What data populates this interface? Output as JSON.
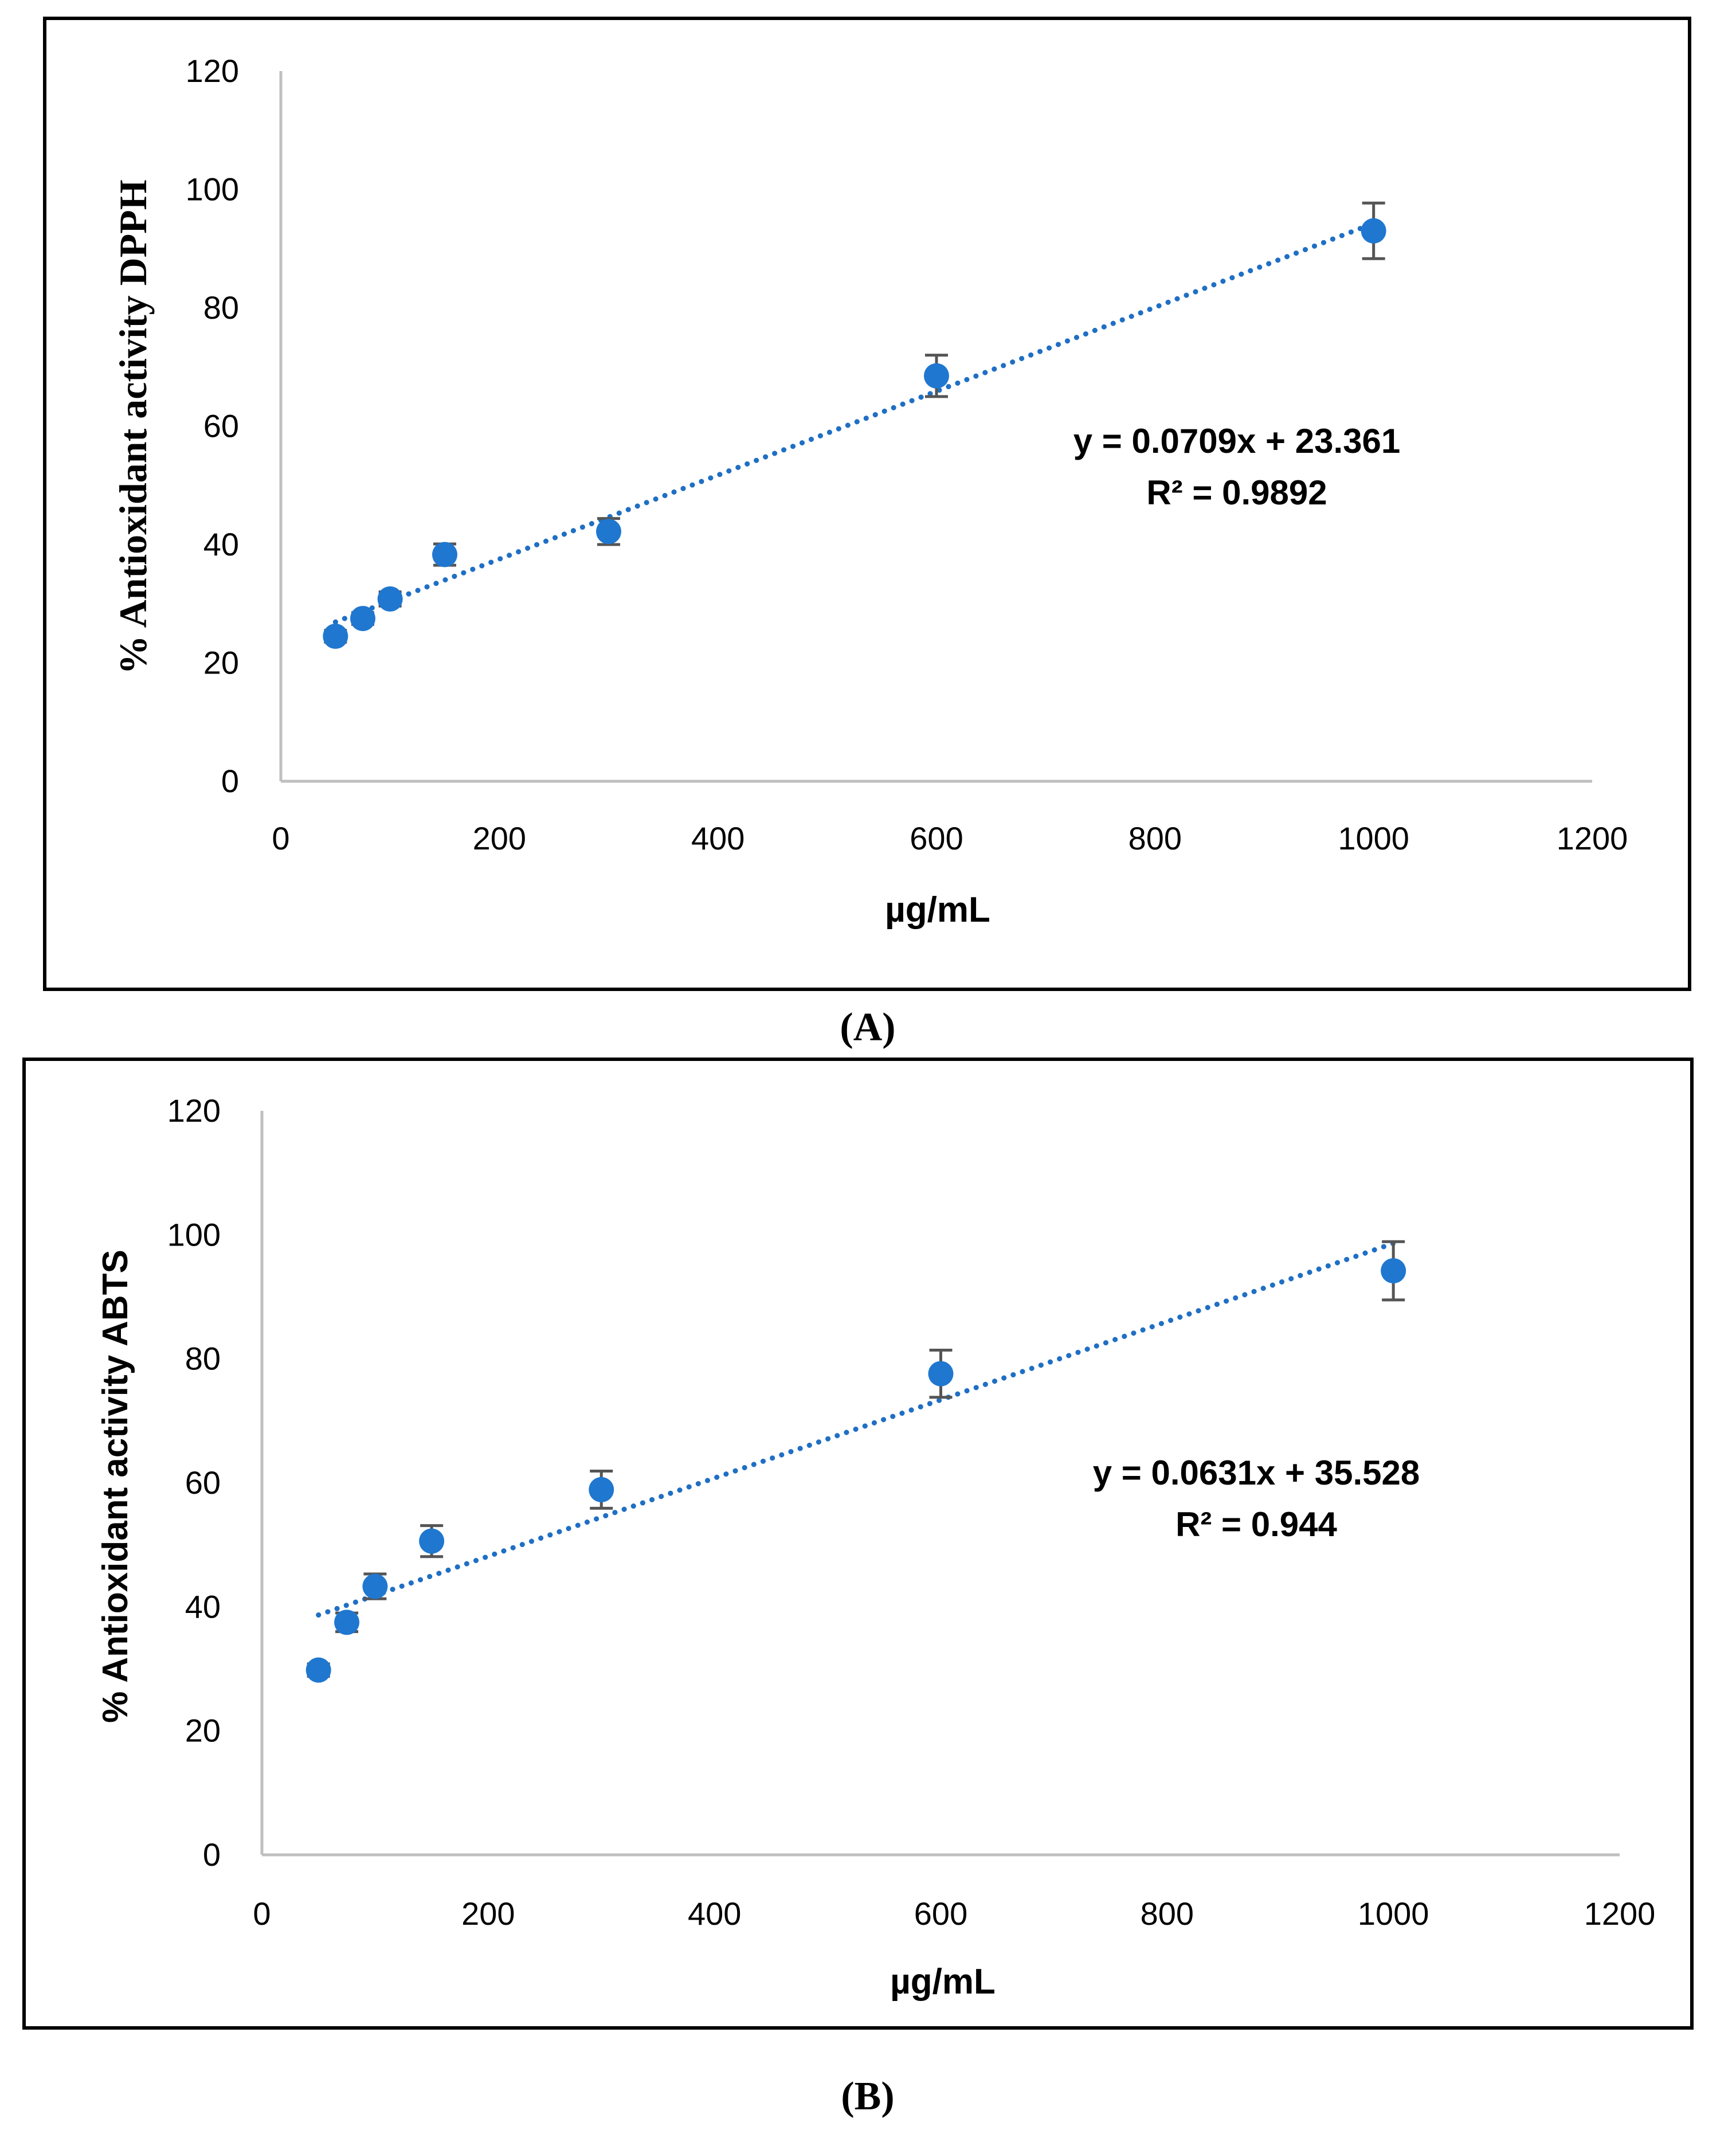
{
  "chart_data": [
    {
      "panel_label": "(A)",
      "type": "scatter",
      "xlabel": "µg/mL",
      "ylabel": "% Antioxidant activity DPPH",
      "xlim": [
        0,
        1200
      ],
      "ylim": [
        0,
        120
      ],
      "xticks": [
        "0",
        "200",
        "400",
        "600",
        "800",
        "1000",
        "1200"
      ],
      "yticks": [
        "0",
        "20",
        "40",
        "60",
        "80",
        "100",
        "120"
      ],
      "marker_color": "#1f77d0",
      "errorbar_color": "#555555",
      "series": [
        {
          "name": "DPPH",
          "x": [
            50,
            75,
            100,
            150,
            300,
            600,
            1000
          ],
          "y": [
            24.5,
            27.5,
            30.8,
            38.3,
            42.2,
            68.5,
            93.0
          ],
          "error": [
            1.0,
            1.0,
            1.2,
            1.8,
            2.2,
            3.5,
            4.7
          ]
        }
      ],
      "trendline": {
        "type": "linear",
        "slope": 0.0709,
        "intercept": 23.361,
        "x_range": [
          50,
          1000
        ],
        "color": "#1f6fc4"
      },
      "annotation": {
        "equation": "y = 0.0709x + 23.361",
        "r2": "R² = 0.9892"
      }
    },
    {
      "panel_label": "(B)",
      "type": "scatter",
      "xlabel": "µg/mL",
      "ylabel": "% Antioxidant activity  ABTS",
      "xlim": [
        0,
        1200
      ],
      "ylim": [
        0,
        120
      ],
      "xticks": [
        "0",
        "200",
        "400",
        "600",
        "800",
        "1000",
        "1200"
      ],
      "yticks": [
        "0",
        "20",
        "40",
        "60",
        "80",
        "100",
        "120"
      ],
      "marker_color": "#1f77d0",
      "errorbar_color": "#555555",
      "series": [
        {
          "name": "ABTS",
          "x": [
            50,
            75,
            100,
            150,
            300,
            600,
            1000
          ],
          "y": [
            29.8,
            37.5,
            43.3,
            50.6,
            58.9,
            77.6,
            94.2
          ],
          "error": [
            1.0,
            1.5,
            2.0,
            2.5,
            3.0,
            3.8,
            4.7
          ]
        }
      ],
      "trendline": {
        "type": "linear",
        "slope": 0.0631,
        "intercept": 35.528,
        "x_range": [
          50,
          1000
        ],
        "color": "#1f6fc4"
      },
      "annotation": {
        "equation": "y = 0.0631x + 35.528",
        "r2": "R² = 0.944"
      }
    }
  ]
}
